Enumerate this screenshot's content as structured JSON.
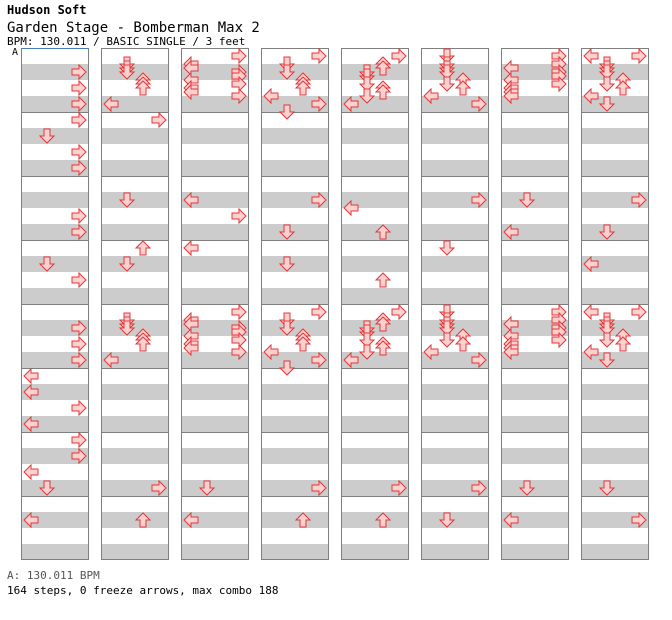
{
  "header": {
    "artist": "Hudson Soft",
    "title": "Garden Stage - Bomberman Max 2",
    "info": "BPM: 130.011 / BASIC SINGLE / 3 feet",
    "bpm_tag": "A"
  },
  "footer": {
    "bpm_line": "A: 130.011 BPM",
    "stats_line": "164 steps, 0 freeze arrows, max combo 188"
  },
  "colors": {
    "arrow_fill": "#ffd0d0",
    "arrow_stroke": "#e03838",
    "stripe": "#cccccc",
    "border": "#7f7f7f",
    "bpm_line": "#4a7fbf"
  },
  "chart_data": {
    "type": "table",
    "description_lanes": [
      "left",
      "down",
      "up",
      "right"
    ],
    "measures_per_column": 8,
    "columns": 8,
    "notes": [
      [
        0,
        4,
        "R"
      ],
      [
        0,
        8,
        "R"
      ],
      [
        0,
        12,
        "R"
      ],
      [
        0,
        16,
        "R"
      ],
      [
        0,
        20,
        "D"
      ],
      [
        0,
        24,
        "R"
      ],
      [
        0,
        28,
        "R"
      ],
      [
        1,
        2,
        "D"
      ],
      [
        1,
        3,
        "D"
      ],
      [
        1,
        4,
        "D"
      ],
      [
        1,
        6,
        "U"
      ],
      [
        1,
        7,
        "U"
      ],
      [
        1,
        8,
        "U"
      ],
      [
        1,
        12,
        "L"
      ],
      [
        1,
        16,
        "R"
      ]
    ]
  }
}
